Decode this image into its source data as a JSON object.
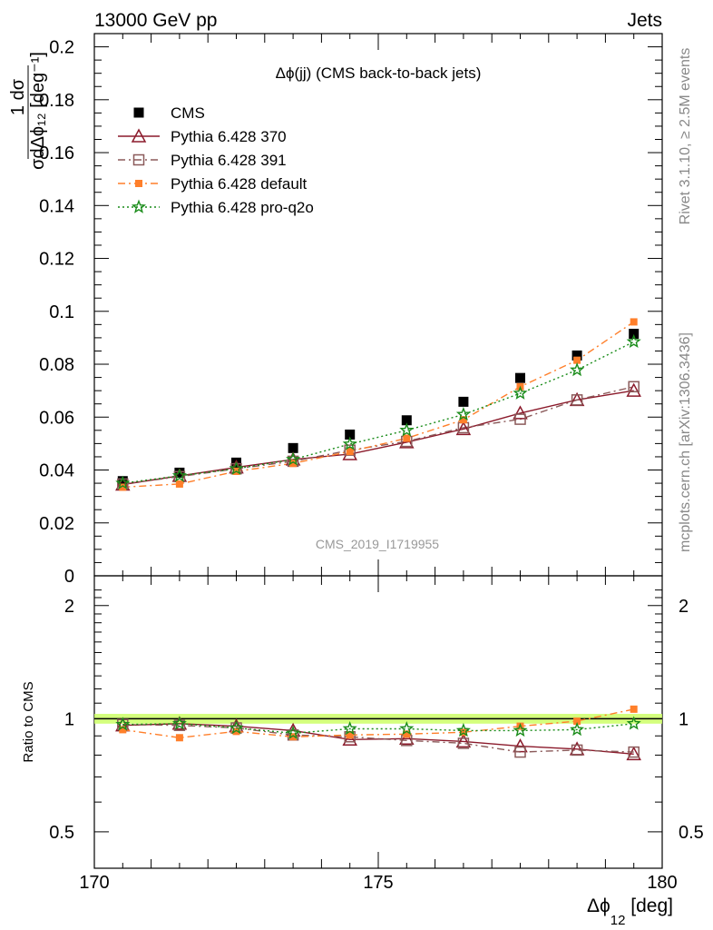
{
  "header": {
    "left": "13000 GeV pp",
    "right": "Jets"
  },
  "side_labels": {
    "rivet": "Rivet 3.1.10, ≥ 2.5M events",
    "mcplots": "mcplots.cern.ch [arXiv:1306.3436]"
  },
  "chart_data": [
    {
      "type": "scatter",
      "title": "Δϕ(jj) (CMS back-to-back jets)",
      "watermark": "CMS_2019_I1719955",
      "ylabel": "1/σ dσ/dΔϕ12 [deg⁻¹]",
      "xlim": [
        170,
        180
      ],
      "ylim": [
        0,
        0.205
      ],
      "yticks": [
        "0",
        "0.02",
        "0.04",
        "0.06",
        "0.08",
        "0.1",
        "0.12",
        "0.14",
        "0.16",
        "0.18",
        "0.2"
      ],
      "legend_position": "top-left",
      "x": [
        170.5,
        171.5,
        172.5,
        173.5,
        174.5,
        175.5,
        176.5,
        177.5,
        178.5,
        179.5
      ],
      "series": [
        {
          "name": "CMS",
          "color": "#000000",
          "marker": "square",
          "line": "none",
          "values": [
            0.0358,
            0.039,
            0.0428,
            0.0483,
            0.0534,
            0.0588,
            0.0658,
            0.0748,
            0.0833,
            0.0915
          ]
        },
        {
          "name": "Pythia 6.428 370",
          "color": "#8b1a2b",
          "marker": "triangle",
          "line": "solid",
          "values": [
            0.0345,
            0.0378,
            0.041,
            0.044,
            0.046,
            0.0505,
            0.0555,
            0.0615,
            0.0665,
            0.07
          ]
        },
        {
          "name": "Pythia 6.428 391",
          "color": "#8b5a5a",
          "marker": "open-square",
          "line": "dashdot",
          "values": [
            0.0347,
            0.0375,
            0.0405,
            0.0433,
            0.0475,
            0.0508,
            0.056,
            0.0592,
            0.0665,
            0.0715
          ]
        },
        {
          "name": "Pythia 6.428 default",
          "color": "#ff7f2a",
          "marker": "filled-square-small",
          "line": "dashdot",
          "values": [
            0.0335,
            0.0347,
            0.0395,
            0.0425,
            0.047,
            0.052,
            0.059,
            0.0715,
            0.0815,
            0.096
          ]
        },
        {
          "name": "Pythia 6.428 pro-q2o",
          "color": "#1a8c1a",
          "marker": "star",
          "line": "dotted",
          "values": [
            0.035,
            0.0378,
            0.0405,
            0.044,
            0.0498,
            0.055,
            0.061,
            0.069,
            0.0778,
            0.0885
          ]
        }
      ]
    },
    {
      "type": "line",
      "ylabel": "Ratio to CMS",
      "xlabel": "Δϕ12 [deg]",
      "xlim": [
        170,
        180
      ],
      "ylim": [
        0.4,
        2.4
      ],
      "ylog": true,
      "yticks": [
        "0.5",
        "1",
        "2"
      ],
      "xticks": [
        "170",
        "175",
        "180"
      ],
      "band_color": "#ccff66",
      "x": [
        170.5,
        171.5,
        172.5,
        173.5,
        174.5,
        175.5,
        176.5,
        177.5,
        178.5,
        179.5
      ],
      "series": [
        {
          "name": "Pythia 6.428 370",
          "color": "#8b1a2b",
          "values": [
            0.96,
            0.97,
            0.955,
            0.93,
            0.88,
            0.885,
            0.87,
            0.845,
            0.83,
            0.805
          ]
        },
        {
          "name": "Pythia 6.428 391",
          "color": "#8b5a5a",
          "values": [
            0.965,
            0.96,
            0.945,
            0.905,
            0.895,
            0.875,
            0.86,
            0.815,
            0.825,
            0.815
          ]
        },
        {
          "name": "Pythia 6.428 default",
          "color": "#ff7f2a",
          "values": [
            0.935,
            0.89,
            0.925,
            0.895,
            0.905,
            0.91,
            0.92,
            0.955,
            0.985,
            1.06
          ]
        },
        {
          "name": "Pythia 6.428 pro-q2o",
          "color": "#1a8c1a",
          "values": [
            0.965,
            0.97,
            0.945,
            0.915,
            0.94,
            0.94,
            0.93,
            0.93,
            0.935,
            0.97
          ]
        }
      ]
    }
  ]
}
